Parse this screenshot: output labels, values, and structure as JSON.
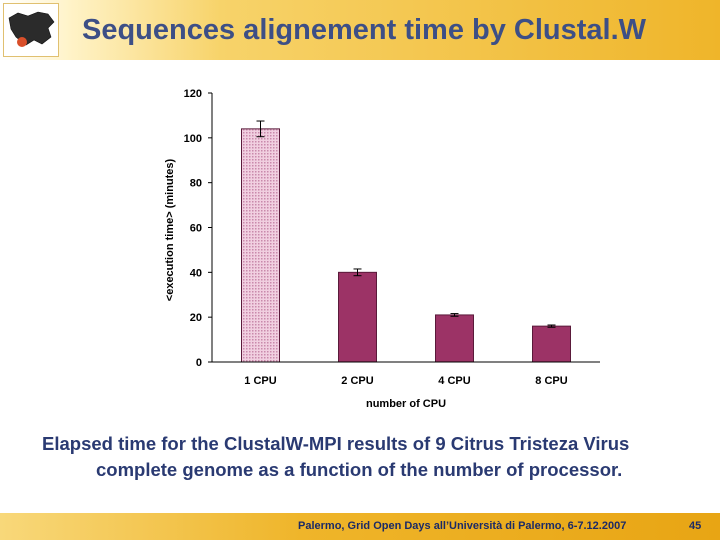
{
  "slide": {
    "title": "Sequences alignement time by Clustal.W",
    "caption_line1": "Elapsed time for the ClustalW-MPI results of 9 Citrus Tristeza Virus",
    "caption_line2": "complete genome as a function of the number of processor.",
    "footer": "Palermo, Grid Open Days all’Università di Palermo, 6-7.12.2007",
    "page_number": "45",
    "logo_icon": "sicily-map-logo-icon"
  },
  "chart_data": {
    "type": "bar",
    "categories": [
      "1 CPU",
      "2 CPU",
      "4 CPU",
      "8 CPU"
    ],
    "values": [
      104,
      40,
      21,
      16
    ],
    "error": [
      3.5,
      1.5,
      0.6,
      0.5
    ],
    "xlabel": "number of CPU",
    "ylabel": "<execution time> (minutes)",
    "ylim": [
      0,
      120
    ],
    "yticks": [
      0,
      20,
      40,
      60,
      80,
      100,
      120
    ],
    "grid": false,
    "colors": {
      "first_bar": "#e8b9cf",
      "bars": "#9c3366",
      "bar_border": "#5a1a3a"
    }
  }
}
